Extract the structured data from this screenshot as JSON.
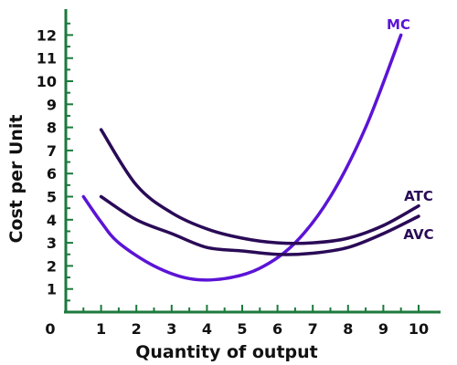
{
  "chart_data": {
    "type": "line",
    "title": "",
    "xlabel": "Quantity of output",
    "ylabel": "Cost per Unit",
    "xlim": [
      0,
      10
    ],
    "ylim": [
      0,
      12.8
    ],
    "origin_label": "0",
    "x_ticks": [
      1,
      2,
      3,
      4,
      5,
      6,
      7,
      8,
      9,
      10
    ],
    "y_ticks": [
      1,
      2,
      3,
      4,
      5,
      6,
      7,
      8,
      9,
      10,
      11,
      12
    ],
    "grid": false,
    "legend": "none (series labeled directly at right ends)",
    "axis_color": "#1b7a3c",
    "series": [
      {
        "name": "MC",
        "color": "#5b14d6",
        "points": [
          [
            0.5,
            5.0
          ],
          [
            1.0,
            3.9
          ],
          [
            1.5,
            3.0
          ],
          [
            2.5,
            2.0
          ],
          [
            3.5,
            1.45
          ],
          [
            4.5,
            1.45
          ],
          [
            5.5,
            1.9
          ],
          [
            6.5,
            3.0
          ],
          [
            7.5,
            5.0
          ],
          [
            8.5,
            8.0
          ],
          [
            9.5,
            12.0
          ]
        ]
      },
      {
        "name": "ATC",
        "color": "#2a0b57",
        "points": [
          [
            1.0,
            7.9
          ],
          [
            2.0,
            5.5
          ],
          [
            3.0,
            4.3
          ],
          [
            4.0,
            3.6
          ],
          [
            5.0,
            3.2
          ],
          [
            6.0,
            3.0
          ],
          [
            7.0,
            3.0
          ],
          [
            8.0,
            3.2
          ],
          [
            9.0,
            3.75
          ],
          [
            10.0,
            4.6
          ]
        ]
      },
      {
        "name": "AVC",
        "color": "#2a0b57",
        "points": [
          [
            1.0,
            5.0
          ],
          [
            2.0,
            4.0
          ],
          [
            3.0,
            3.4
          ],
          [
            4.0,
            2.8
          ],
          [
            5.0,
            2.65
          ],
          [
            6.0,
            2.5
          ],
          [
            7.0,
            2.55
          ],
          [
            8.0,
            2.8
          ],
          [
            9.0,
            3.4
          ],
          [
            10.0,
            4.15
          ]
        ]
      }
    ]
  }
}
